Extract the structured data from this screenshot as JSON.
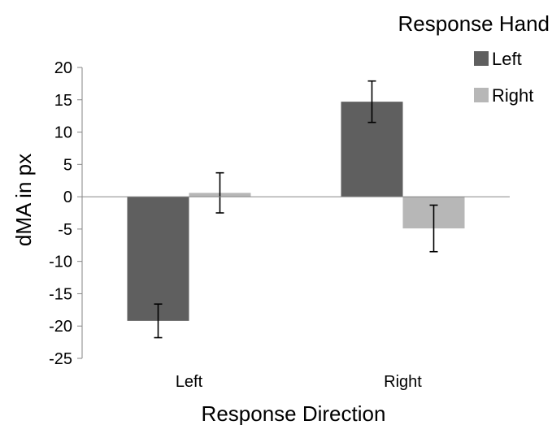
{
  "chart_data": {
    "type": "bar",
    "categories": [
      "Left",
      "Right"
    ],
    "series": [
      {
        "name": "Left",
        "color": "#5f5f5f",
        "values": [
          -19.2,
          14.7
        ],
        "errors": [
          2.6,
          3.2
        ]
      },
      {
        "name": "Right",
        "color": "#b7b7b7",
        "values": [
          0.6,
          -4.9
        ],
        "errors": [
          3.1,
          3.6
        ]
      }
    ],
    "ylabel": "dMA in px",
    "xlabel": "Response Direction",
    "ylim": [
      -25,
      20
    ],
    "yticks": [
      20,
      15,
      10,
      5,
      0,
      -5,
      -10,
      -15,
      -20,
      -25
    ],
    "ytick_labels": [
      "20",
      "15",
      "10",
      "5",
      "0",
      "-5",
      "-10",
      "-15",
      "-20",
      "-25"
    ],
    "legend_title": "Response Hand",
    "legend_position": "top-right",
    "grid": false,
    "error_bars": true
  }
}
